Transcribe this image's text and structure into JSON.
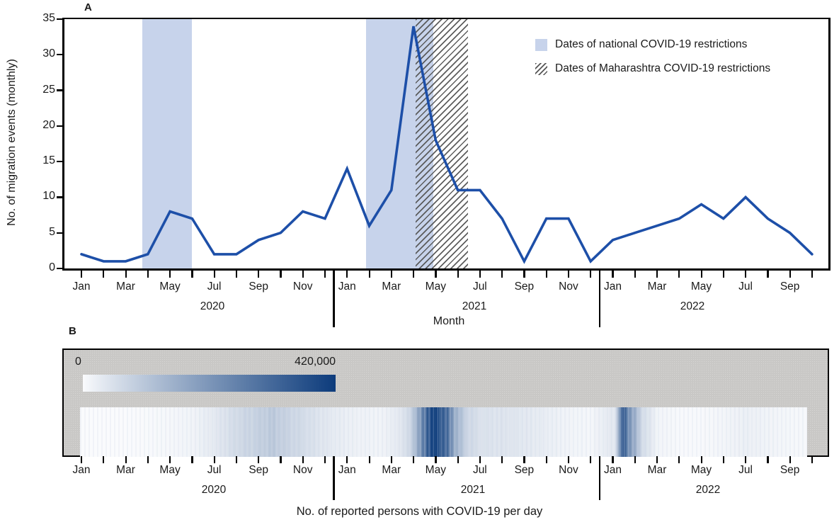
{
  "chart_data": [
    {
      "type": "line",
      "panel": "A",
      "ylabel": "No. of migration events (monthly)",
      "xlabel": "Month",
      "ylim": [
        0,
        35
      ],
      "yticks": [
        "0",
        "5",
        "10",
        "15",
        "20",
        "25",
        "30",
        "35"
      ],
      "grid": false,
      "years": [
        {
          "label": "2020",
          "month_labels": [
            "Jan",
            "Mar",
            "May",
            "Jul",
            "Sep",
            "Nov"
          ]
        },
        {
          "label": "2021",
          "month_labels": [
            "Jan",
            "Mar",
            "May",
            "Jul",
            "Sep",
            "Nov"
          ]
        },
        {
          "label": "2022",
          "month_labels": [
            "Jan",
            "Mar",
            "May",
            "Jul",
            "Sep"
          ]
        }
      ],
      "series": [
        {
          "name": "No. of migration events (monthly)",
          "color": "#1d4fa8",
          "months": [
            "Jan 2020",
            "Feb 2020",
            "Mar 2020",
            "Apr 2020",
            "May 2020",
            "Jun 2020",
            "Jul 2020",
            "Aug 2020",
            "Sep 2020",
            "Oct 2020",
            "Nov 2020",
            "Dec 2020",
            "Jan 2021",
            "Feb 2021",
            "Mar 2021",
            "Apr 2021",
            "May 2021",
            "Jun 2021",
            "Jul 2021",
            "Aug 2021",
            "Sep 2021",
            "Oct 2021",
            "Nov 2021",
            "Dec 2021",
            "Jan 2022",
            "Feb 2022",
            "Mar 2022",
            "Apr 2022",
            "May 2022",
            "Jun 2022",
            "Jul 2022",
            "Aug 2022",
            "Sep 2022",
            "Oct 2022"
          ],
          "values": [
            2,
            1,
            1,
            2,
            8,
            7,
            2,
            2,
            4,
            5,
            8,
            7,
            14,
            6,
            11,
            34,
            18,
            11,
            11,
            7,
            1,
            7,
            7,
            1,
            4,
            5,
            6,
            7,
            9,
            7,
            10,
            7,
            5,
            2
          ]
        }
      ],
      "bands": [
        {
          "name": "national-restrictions-2020",
          "style": "solid",
          "color": "#c7d3eb",
          "start_month": 2.76,
          "end_month": 5.0
        },
        {
          "name": "national-restrictions-2021",
          "style": "solid",
          "color": "#c7d3eb",
          "start_month": 12.85,
          "end_month": 15.9
        },
        {
          "name": "maharashtra-restrictions-2021",
          "style": "hatched",
          "color": "#555555",
          "start_month": 15.1,
          "end_month": 17.45
        }
      ],
      "legend": [
        {
          "label": "Dates of national COVID-19 restrictions",
          "swatch": "solid"
        },
        {
          "label": "Dates of Maharashtra COVID-19 restrictions",
          "swatch": "hatched"
        }
      ]
    },
    {
      "type": "heatmap",
      "panel": "B",
      "caption": "No. of reported persons with COVID-19 per day",
      "colorbar": {
        "min_label": "0",
        "max_label": "420,000",
        "min": 0,
        "max": 420000,
        "min_color": "#fafbfd",
        "max_color": "#0d3c7c"
      },
      "years": [
        {
          "label": "2020",
          "month_labels": [
            "Jan",
            "Mar",
            "May",
            "Jul",
            "Sep",
            "Nov"
          ]
        },
        {
          "label": "2021",
          "month_labels": [
            "Jan",
            "Mar",
            "May",
            "Jul",
            "Sep",
            "Nov"
          ]
        },
        {
          "label": "2022",
          "month_labels": [
            "Jan",
            "Mar",
            "May",
            "Jul",
            "Sep"
          ]
        }
      ],
      "daily_cases_anchors": [
        {
          "m": 0,
          "v": 0
        },
        {
          "m": 2,
          "v": 500
        },
        {
          "m": 3,
          "v": 2000
        },
        {
          "m": 4,
          "v": 6000
        },
        {
          "m": 5,
          "v": 12000
        },
        {
          "m": 6,
          "v": 30000
        },
        {
          "m": 7,
          "v": 60000
        },
        {
          "m": 8,
          "v": 83000
        },
        {
          "m": 8.6,
          "v": 97000
        },
        {
          "m": 9.5,
          "v": 70000
        },
        {
          "m": 10.5,
          "v": 45000
        },
        {
          "m": 11.5,
          "v": 25000
        },
        {
          "m": 12.5,
          "v": 15000
        },
        {
          "m": 13.5,
          "v": 11500
        },
        {
          "m": 14.2,
          "v": 25000
        },
        {
          "m": 14.8,
          "v": 60000
        },
        {
          "m": 15.3,
          "v": 200000
        },
        {
          "m": 15.7,
          "v": 380000
        },
        {
          "m": 15.95,
          "v": 414000
        },
        {
          "m": 16.4,
          "v": 330000
        },
        {
          "m": 16.9,
          "v": 150000
        },
        {
          "m": 17.4,
          "v": 70000
        },
        {
          "m": 18,
          "v": 45000
        },
        {
          "m": 19,
          "v": 40000
        },
        {
          "m": 20,
          "v": 33000
        },
        {
          "m": 21,
          "v": 22000
        },
        {
          "m": 22,
          "v": 11000
        },
        {
          "m": 23,
          "v": 7000
        },
        {
          "m": 24.1,
          "v": 35000
        },
        {
          "m": 24.45,
          "v": 347000
        },
        {
          "m": 24.8,
          "v": 200000
        },
        {
          "m": 25.3,
          "v": 60000
        },
        {
          "m": 26,
          "v": 10000
        },
        {
          "m": 27,
          "v": 2500
        },
        {
          "m": 28,
          "v": 3000
        },
        {
          "m": 29,
          "v": 9000
        },
        {
          "m": 30,
          "v": 19000
        },
        {
          "m": 31,
          "v": 12000
        },
        {
          "m": 32,
          "v": 6000
        },
        {
          "m": 33.5,
          "v": 2500
        }
      ]
    }
  ]
}
